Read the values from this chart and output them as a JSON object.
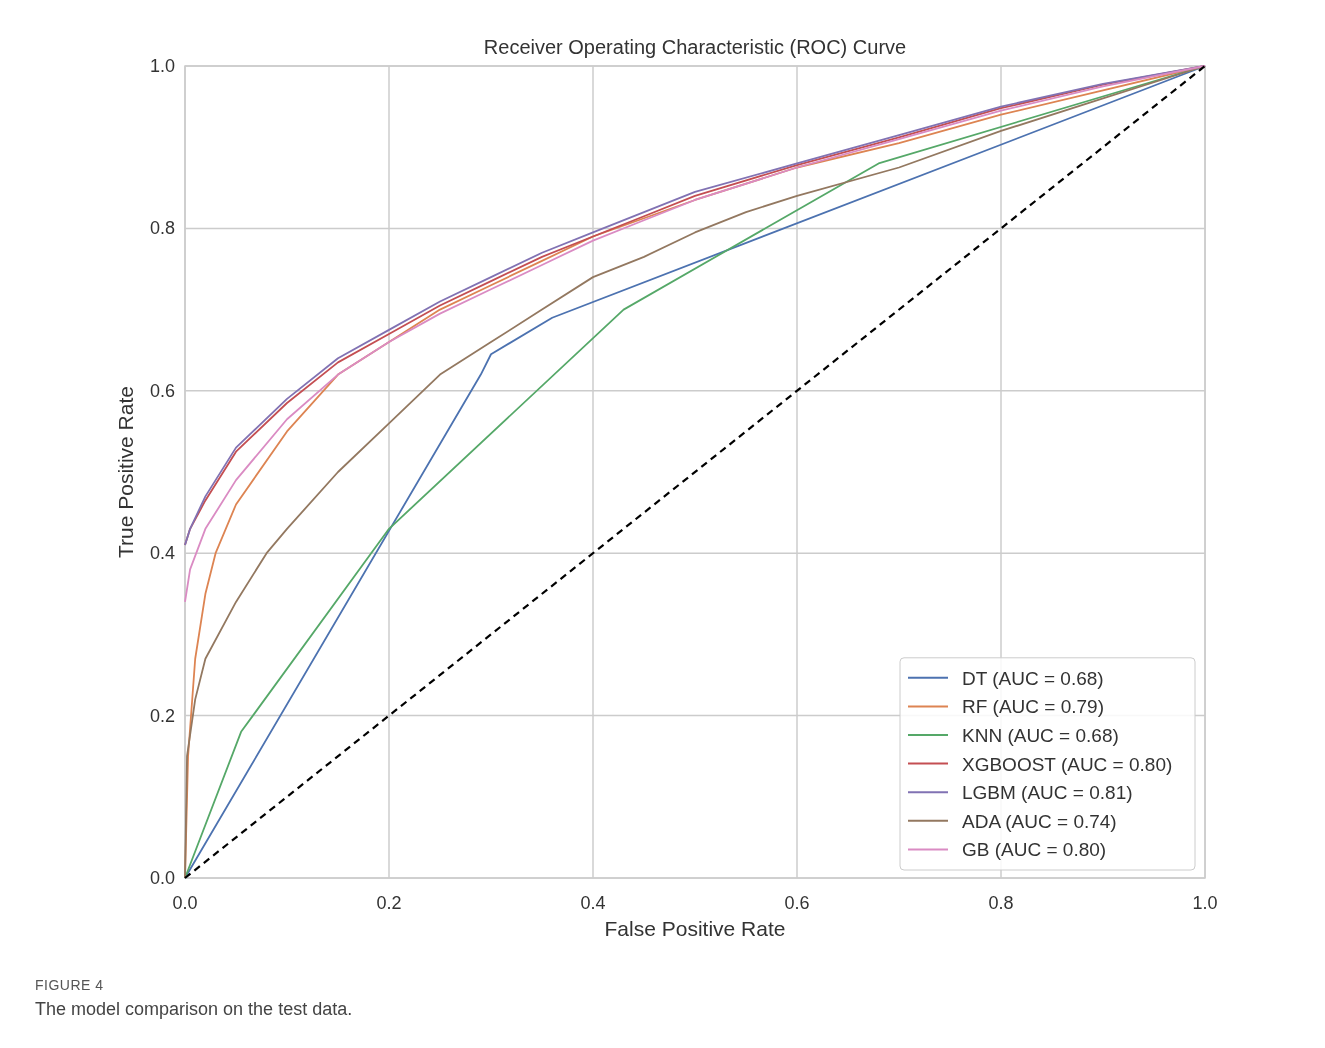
{
  "chart_data": {
    "type": "line",
    "title": "Receiver Operating Characteristic (ROC) Curve",
    "xlabel": "False Positive Rate",
    "ylabel": "True Positive Rate",
    "xlim": [
      0,
      1
    ],
    "ylim": [
      0,
      1
    ],
    "xticks": [
      {
        "value": 0,
        "label": "0.0"
      },
      0.2,
      0.4,
      0.6,
      0.8,
      {
        "value": 1,
        "label": "1.0"
      }
    ],
    "yticks": [
      {
        "value": 0,
        "label": "0.0"
      },
      0.2,
      0.4,
      0.6,
      0.8,
      {
        "value": 1,
        "label": "1.0"
      }
    ],
    "grid": true,
    "legend": "bottom right",
    "line_style": "solid",
    "series": [
      {
        "name": "DT (AUC = 0.68)",
        "color": "#4c72b0",
        "x": [
          0,
          0.29,
          0.3,
          0.36,
          1
        ],
        "values": [
          0,
          0.62,
          0.645,
          0.69,
          1
        ]
      },
      {
        "name": "RF (AUC = 0.79)",
        "color": "#dd8452",
        "x": [
          0,
          0.003,
          0.01,
          0.02,
          0.03,
          0.05,
          0.1,
          0.15,
          0.2,
          0.25,
          0.3,
          0.35,
          0.4,
          0.5,
          0.6,
          0.7,
          0.8,
          0.9,
          1
        ],
        "values": [
          0,
          0.15,
          0.27,
          0.35,
          0.4,
          0.46,
          0.55,
          0.62,
          0.66,
          0.7,
          0.73,
          0.76,
          0.79,
          0.835,
          0.875,
          0.905,
          0.94,
          0.97,
          1
        ]
      },
      {
        "name": "KNN (AUC = 0.68)",
        "color": "#55a868",
        "x": [
          0,
          0.055,
          0.2,
          0.43,
          0.68,
          1
        ],
        "values": [
          0,
          0.18,
          0.43,
          0.7,
          0.88,
          1
        ]
      },
      {
        "name": "XGBOOST (AUC = 0.80)",
        "color": "#c44e52",
        "x": [
          0,
          0.005,
          0.02,
          0.05,
          0.1,
          0.15,
          0.2,
          0.25,
          0.3,
          0.35,
          0.4,
          0.45,
          0.5,
          0.6,
          0.7,
          0.8,
          0.9,
          1
        ],
        "values": [
          0.41,
          0.43,
          0.465,
          0.525,
          0.585,
          0.635,
          0.67,
          0.705,
          0.735,
          0.765,
          0.79,
          0.815,
          0.84,
          0.878,
          0.912,
          0.948,
          0.977,
          1
        ]
      },
      {
        "name": "LGBM (AUC = 0.81)",
        "color": "#8172b3",
        "x": [
          0,
          0.005,
          0.02,
          0.05,
          0.1,
          0.15,
          0.2,
          0.25,
          0.3,
          0.35,
          0.4,
          0.45,
          0.5,
          0.6,
          0.7,
          0.8,
          0.9,
          1
        ],
        "values": [
          0.41,
          0.43,
          0.47,
          0.53,
          0.59,
          0.64,
          0.675,
          0.71,
          0.74,
          0.77,
          0.795,
          0.82,
          0.845,
          0.88,
          0.915,
          0.95,
          0.978,
          1
        ]
      },
      {
        "name": "ADA (AUC = 0.74)",
        "color": "#937860",
        "x": [
          0,
          0.002,
          0.01,
          0.02,
          0.05,
          0.08,
          0.1,
          0.15,
          0.2,
          0.25,
          0.3,
          0.35,
          0.4,
          0.45,
          0.5,
          0.55,
          0.6,
          0.7,
          0.8,
          0.9,
          1
        ],
        "values": [
          0,
          0.15,
          0.22,
          0.27,
          0.34,
          0.4,
          0.43,
          0.5,
          0.56,
          0.62,
          0.66,
          0.7,
          0.74,
          0.765,
          0.795,
          0.82,
          0.84,
          0.875,
          0.92,
          0.96,
          1
        ]
      },
      {
        "name": "GB (AUC = 0.80)",
        "color": "#da8bc3",
        "x": [
          0,
          0.005,
          0.02,
          0.05,
          0.1,
          0.15,
          0.2,
          0.25,
          0.3,
          0.35,
          0.4,
          0.45,
          0.5,
          0.6,
          0.7,
          0.8,
          0.9,
          1
        ],
        "values": [
          0.34,
          0.38,
          0.43,
          0.49,
          0.565,
          0.62,
          0.66,
          0.695,
          0.725,
          0.755,
          0.785,
          0.81,
          0.835,
          0.875,
          0.91,
          0.945,
          0.975,
          1
        ]
      },
      {
        "color": "#000000",
        "line_style": "dashed",
        "x": [
          0,
          1
        ],
        "values": [
          0,
          1
        ]
      }
    ],
    "annotations": [
      "FIGURE 4",
      "The model comparison on the test data."
    ]
  }
}
